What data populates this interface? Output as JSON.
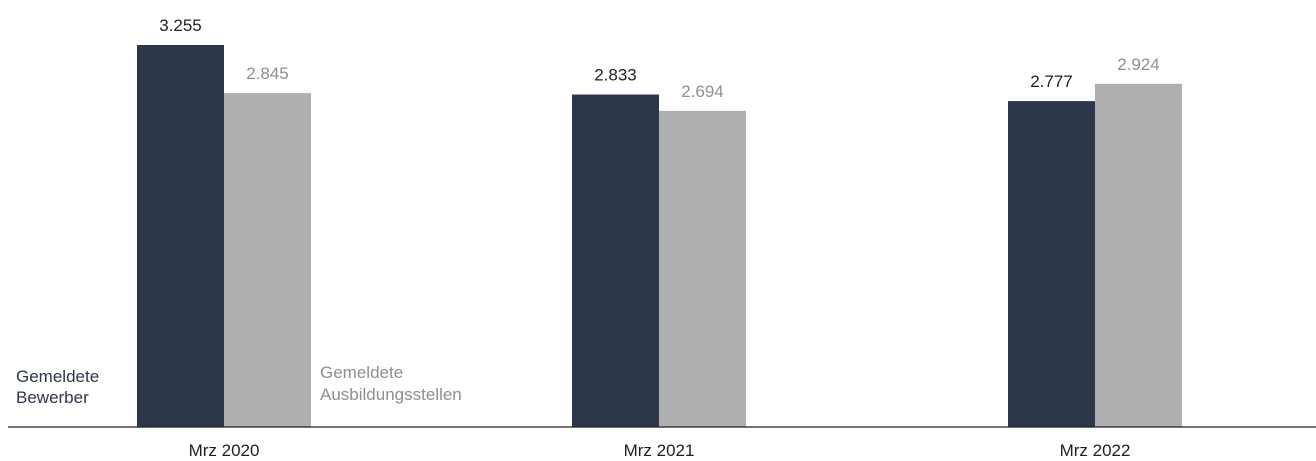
{
  "chart_data": {
    "type": "bar",
    "categories": [
      "Mrz 2020",
      "Mrz 2021",
      "Mrz 2022"
    ],
    "series": [
      {
        "name": "Gemeldete Bewerber",
        "name_lines": [
          "Gemeldete",
          "Bewerber"
        ],
        "values": [
          3255,
          2833,
          2777
        ],
        "labels": [
          "3.255",
          "2.833",
          "2.777"
        ],
        "color": "#2e364c"
      },
      {
        "name": "Gemeldete Ausbildungsstellen",
        "name_lines": [
          "Gemeldete",
          "Ausbildungsstellen"
        ],
        "values": [
          2845,
          2694,
          2924
        ],
        "labels": [
          "2.845",
          "2.694",
          "2.924"
        ],
        "color": "#afafaf"
      }
    ],
    "ylim": [
      0,
      3255
    ],
    "grid": false,
    "label_color": "#8f8f8f",
    "axis_color": "#1f1f1f"
  }
}
